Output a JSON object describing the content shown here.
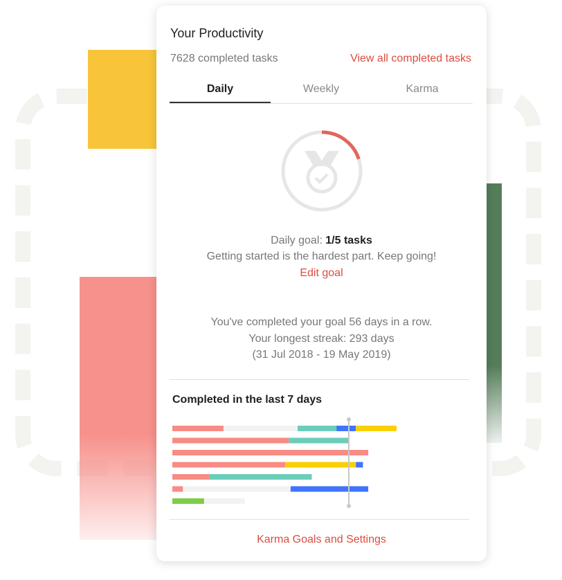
{
  "header": {
    "title": "Your Productivity",
    "completed_count": "7628 completed tasks",
    "view_all": "View all completed tasks"
  },
  "tabs": [
    {
      "label": "Daily",
      "active": true
    },
    {
      "label": "Weekly",
      "active": false
    },
    {
      "label": "Karma",
      "active": false
    }
  ],
  "goal": {
    "icon": "medal-check-icon",
    "progress": 0.2,
    "label": "Daily goal: ",
    "value": "1/5 tasks",
    "message": "Getting started is the hardest part. Keep going!",
    "edit": "Edit goal"
  },
  "streak": {
    "line1": "You've completed your goal 56 days in a row.",
    "line2": "Your longest streak: 293 days",
    "line3": "(31 Jul 2018 - 19 May 2019)"
  },
  "chart_data": {
    "type": "bar",
    "title": "Completed in the last 7 days",
    "orientation": "horizontal",
    "stacked": true,
    "goal": 5,
    "colors": {
      "pink": "#f88b84",
      "gray": "#f2f2f2",
      "teal": "#6bcdb9",
      "blue": "#4073ff",
      "yellow": "#fad000",
      "green": "#7ecc49"
    },
    "rows": [
      [
        {
          "color": "pink",
          "value": 1.45
        },
        {
          "color": "gray",
          "value": 2.1
        },
        {
          "color": "teal",
          "value": 1.1
        },
        {
          "color": "blue",
          "value": 0.55
        },
        {
          "color": "yellow",
          "value": 1.15
        }
      ],
      [
        {
          "color": "pink",
          "value": 3.3
        },
        {
          "color": "teal",
          "value": 1.7
        }
      ],
      [
        {
          "color": "pink",
          "value": 5.55
        }
      ],
      [
        {
          "color": "pink",
          "value": 3.2
        },
        {
          "color": "yellow",
          "value": 2.0
        },
        {
          "color": "blue",
          "value": 0.2
        }
      ],
      [
        {
          "color": "pink",
          "value": 1.05
        },
        {
          "color": "teal",
          "value": 2.9
        }
      ],
      [
        {
          "color": "pink",
          "value": 0.3
        },
        {
          "color": "gray",
          "value": 3.05
        },
        {
          "color": "blue",
          "value": 2.2
        }
      ],
      [
        {
          "color": "green",
          "value": 0.9
        },
        {
          "color": "gray",
          "value": 1.15
        }
      ]
    ]
  },
  "footer": {
    "label": "Karma Goals and Settings"
  }
}
